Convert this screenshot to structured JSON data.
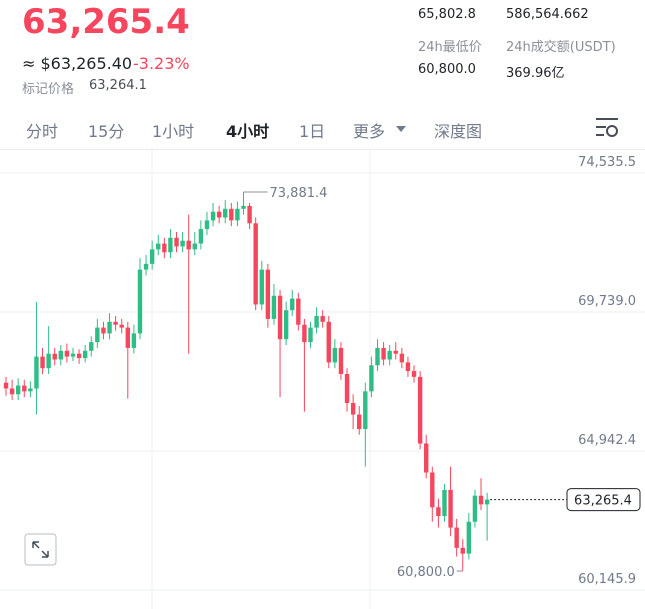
{
  "header": {
    "price": "63,265.4",
    "approx": "≈ $63,265.40",
    "change": "-3.23%",
    "mark_label": "标记价格",
    "mark_price": "63,264.1"
  },
  "stats": {
    "high_value": "65,802.8",
    "volume_value": "586,564.662",
    "low_label": "24h最低价",
    "turnover_label": "24h成交额(USDT)",
    "low_value": "60,800.0",
    "turnover_value": "369.96亿"
  },
  "tabs": [
    "分时",
    "15分",
    "1小时",
    "4小时",
    "1日",
    "更多",
    "深度图"
  ],
  "active_tab": 3,
  "chart_data": {
    "type": "candlestick",
    "up_color": "#2ebd85",
    "down_color": "#f6465d",
    "ylim": [
      59490,
      75329
    ],
    "yticks": [
      {
        "value": 60145.9,
        "label": "60,145.9"
      },
      {
        "value": 64942.4,
        "label": "64,942.4"
      },
      {
        "value": 69739.0,
        "label": "69,739.0"
      },
      {
        "value": 74535.5,
        "label": "74,535.5"
      }
    ],
    "grid": true,
    "open": [
      67300,
      67100,
      66900,
      67200,
      67000,
      67100,
      68200,
      67800,
      68300,
      68100,
      68400,
      68200,
      68300,
      68150,
      68400,
      68700,
      69200,
      69000,
      69400,
      69300,
      69200,
      68500,
      69000,
      71200,
      71400,
      71900,
      72100,
      71800,
      72300,
      72000,
      72200,
      71900,
      72100,
      72600,
      72900,
      73200,
      73000,
      73300,
      72900,
      73300,
      73400,
      72800,
      70000,
      71200,
      69500,
      70300,
      68800,
      69800,
      70200,
      69300,
      68700,
      69200,
      69600,
      69400,
      68000,
      68500,
      67600,
      66600,
      66200,
      65700,
      67000,
      67900,
      68500,
      68100,
      68400,
      68300,
      68000,
      67700,
      67500,
      65200,
      64200,
      63000,
      62700,
      63600,
      62300,
      61600,
      61400,
      62500,
      63400,
      63100
    ],
    "high": [
      67500,
      67400,
      67450,
      67400,
      67350,
      70080,
      68500,
      69250,
      68500,
      68600,
      68650,
      68500,
      68450,
      68600,
      68900,
      69500,
      69400,
      69700,
      69600,
      69500,
      69400,
      69300,
      71600,
      71700,
      72200,
      72400,
      72300,
      72600,
      72500,
      72500,
      73100,
      72500,
      72900,
      73200,
      73500,
      73400,
      73600,
      73500,
      73550,
      73881.4,
      73500,
      73000,
      71500,
      71400,
      70700,
      70500,
      70100,
      70500,
      70400,
      69500,
      69400,
      69900,
      69800,
      69600,
      68800,
      68700,
      67800,
      66900,
      66500,
      67300,
      68200,
      68800,
      68700,
      68600,
      68700,
      68500,
      68200,
      67900,
      67700,
      65500,
      64400,
      63300,
      63800,
      64400,
      62600,
      61900,
      62800,
      63600,
      64000,
      63500
    ],
    "low": [
      66850,
      66700,
      66700,
      66800,
      66800,
      66200,
      67600,
      67600,
      67900,
      67900,
      68000,
      68050,
      67950,
      68000,
      68200,
      68500,
      68800,
      68800,
      69100,
      69000,
      66750,
      68300,
      68800,
      71000,
      71200,
      71700,
      71600,
      71600,
      71800,
      71800,
      68300,
      71700,
      71900,
      72400,
      72700,
      72800,
      72800,
      72700,
      72700,
      73100,
      72600,
      69800,
      69800,
      69200,
      69300,
      66800,
      68600,
      69600,
      69100,
      66300,
      68500,
      69000,
      69200,
      67800,
      67800,
      67400,
      66300,
      65700,
      65500,
      64400,
      66800,
      67700,
      67900,
      67900,
      68100,
      67800,
      67500,
      67300,
      65000,
      64000,
      62500,
      62300,
      62500,
      62000,
      61300,
      60800,
      61200,
      62300,
      62900,
      61850
    ],
    "close": [
      67100,
      66900,
      67200,
      67000,
      67100,
      68200,
      67800,
      68300,
      68100,
      68400,
      68200,
      68300,
      68150,
      68400,
      68700,
      69200,
      69000,
      69400,
      69300,
      69200,
      68500,
      69000,
      71200,
      71400,
      71900,
      72100,
      71800,
      72300,
      72000,
      72200,
      71900,
      72100,
      72600,
      72900,
      73200,
      73000,
      73300,
      72900,
      73300,
      73400,
      72800,
      70000,
      71200,
      69500,
      70300,
      68800,
      69800,
      70200,
      69300,
      68700,
      69200,
      69600,
      69400,
      68000,
      68500,
      67600,
      66600,
      66200,
      65700,
      67000,
      67900,
      68500,
      68100,
      68400,
      68300,
      68000,
      67700,
      67500,
      65200,
      64200,
      63000,
      62700,
      63600,
      62300,
      61600,
      61400,
      62500,
      63400,
      63100,
      63265.4
    ],
    "high_label": {
      "value": 73881.4,
      "label": "73,881.4"
    },
    "low_label": {
      "value": 60800.0,
      "label": "60,800.0"
    },
    "last_price": {
      "value": 63265.4,
      "label": "63,265.4"
    }
  }
}
